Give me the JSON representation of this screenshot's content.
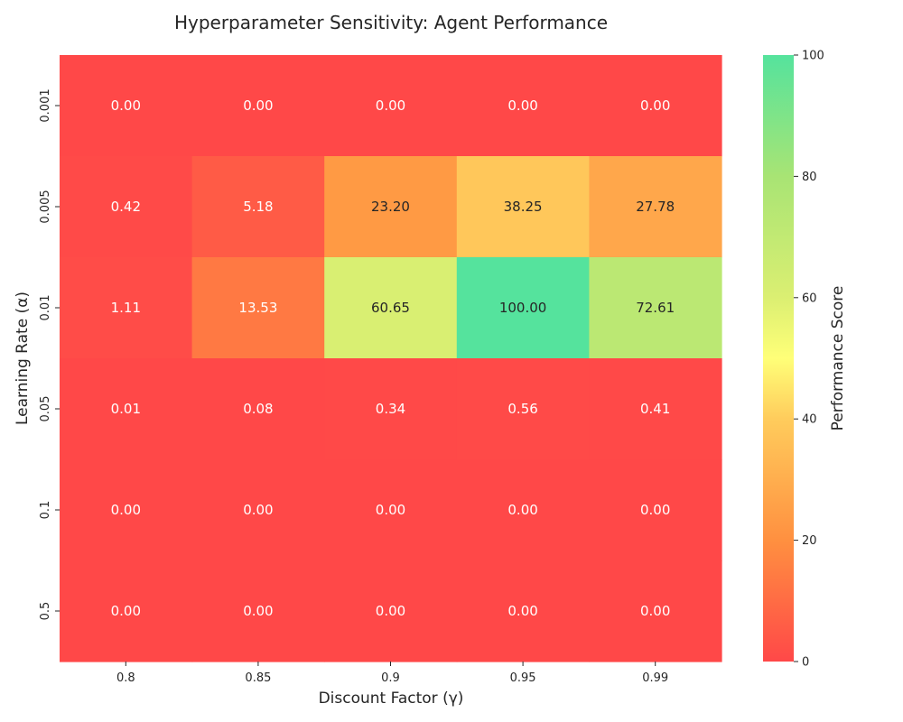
{
  "chart_data": {
    "type": "heatmap",
    "title": "Hyperparameter Sensitivity: Agent Performance",
    "xlabel": "Discount Factor (γ)",
    "ylabel": "Learning Rate (α)",
    "x_categories": [
      "0.8",
      "0.85",
      "0.9",
      "0.95",
      "0.99"
    ],
    "y_categories": [
      "0.001",
      "0.005",
      "0.01",
      "0.05",
      "0.1",
      "0.5"
    ],
    "values": [
      [
        0.0,
        0.0,
        0.0,
        0.0,
        0.0
      ],
      [
        0.42,
        5.18,
        23.2,
        38.25,
        27.78
      ],
      [
        1.11,
        13.53,
        60.65,
        100.0,
        72.61
      ],
      [
        0.01,
        0.08,
        0.34,
        0.56,
        0.41
      ],
      [
        0.0,
        0.0,
        0.0,
        0.0,
        0.0
      ],
      [
        0.0,
        0.0,
        0.0,
        0.0,
        0.0
      ]
    ],
    "value_format": "2 decimals",
    "colorbar": {
      "label": "Performance Score",
      "range": [
        0,
        100
      ],
      "ticks": [
        "0",
        "20",
        "40",
        "60",
        "80",
        "100"
      ]
    },
    "colormap": [
      {
        "at": 0,
        "color": "#ff4848"
      },
      {
        "at": 20,
        "color": "#ff9040"
      },
      {
        "at": 40,
        "color": "#ffcc5c"
      },
      {
        "at": 50,
        "color": "#ffff78"
      },
      {
        "at": 60,
        "color": "#dbef72"
      },
      {
        "at": 80,
        "color": "#a8e474"
      },
      {
        "at": 100,
        "color": "#55e39d"
      }
    ],
    "text_colors": {
      "dark_bg": "#ffffff",
      "light_bg": "#262626"
    }
  }
}
